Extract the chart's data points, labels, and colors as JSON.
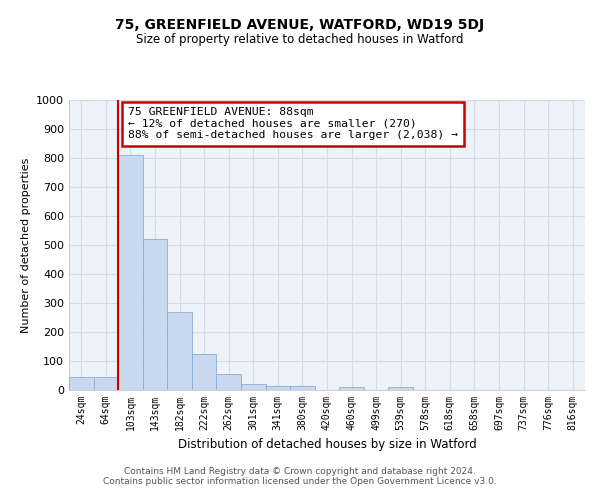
{
  "title": "75, GREENFIELD AVENUE, WATFORD, WD19 5DJ",
  "subtitle": "Size of property relative to detached houses in Watford",
  "xlabel": "Distribution of detached houses by size in Watford",
  "ylabel": "Number of detached properties",
  "bar_labels": [
    "24sqm",
    "64sqm",
    "103sqm",
    "143sqm",
    "182sqm",
    "222sqm",
    "262sqm",
    "301sqm",
    "341sqm",
    "380sqm",
    "420sqm",
    "460sqm",
    "499sqm",
    "539sqm",
    "578sqm",
    "618sqm",
    "658sqm",
    "697sqm",
    "737sqm",
    "776sqm",
    "816sqm"
  ],
  "bar_values": [
    45,
    45,
    810,
    520,
    270,
    125,
    55,
    22,
    15,
    14,
    0,
    10,
    0,
    10,
    0,
    0,
    0,
    0,
    0,
    0,
    0
  ],
  "bar_color": "#c8d8ef",
  "bar_edge_color": "#8aaed4",
  "ylim": [
    0,
    1000
  ],
  "yticks": [
    0,
    100,
    200,
    300,
    400,
    500,
    600,
    700,
    800,
    900,
    1000
  ],
  "redline_index": 2,
  "annotation_text": "75 GREENFIELD AVENUE: 88sqm\n← 12% of detached houses are smaller (270)\n88% of semi-detached houses are larger (2,038) →",
  "annotation_box_color": "#ffffff",
  "annotation_box_edge": "#cc0000",
  "redline_color": "#cc0000",
  "grid_color": "#d0dce8",
  "bg_color": "#eef3f9",
  "footer1": "Contains HM Land Registry data © Crown copyright and database right 2024.",
  "footer2": "Contains public sector information licensed under the Open Government Licence v3.0."
}
